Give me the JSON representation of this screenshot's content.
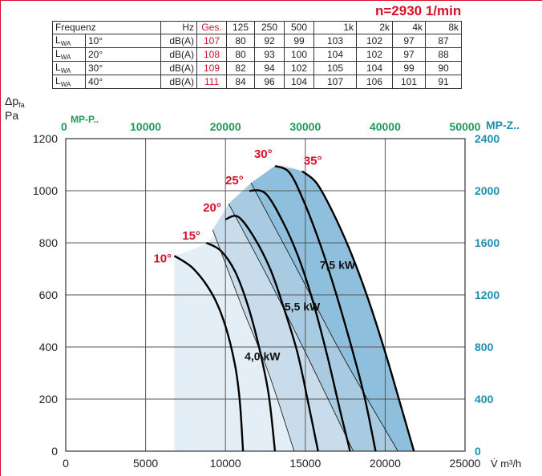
{
  "rpm_label": "n=2930 1/min",
  "noise_table": {
    "header": [
      "Frequenz",
      "",
      "Hz",
      "Ges.",
      "125",
      "250",
      "500",
      "1k",
      "2k",
      "4k",
      "8k"
    ],
    "rows": [
      {
        "label": "L",
        "sub": "WA",
        "angle": "10°",
        "unit": "dB(A)",
        "total": "107",
        "bands": [
          "80",
          "92",
          "99",
          "103",
          "102",
          "97",
          "87"
        ]
      },
      {
        "label": "L",
        "sub": "WA",
        "angle": "20°",
        "unit": "dB(A)",
        "total": "108",
        "bands": [
          "80",
          "93",
          "100",
          "104",
          "102",
          "97",
          "88"
        ]
      },
      {
        "label": "L",
        "sub": "WA",
        "angle": "30°",
        "unit": "dB(A)",
        "total": "109",
        "bands": [
          "82",
          "94",
          "102",
          "105",
          "104",
          "99",
          "90"
        ]
      },
      {
        "label": "L",
        "sub": "WA",
        "angle": "40°",
        "unit": "dB(A)",
        "total": "111",
        "bands": [
          "84",
          "96",
          "104",
          "107",
          "106",
          "101",
          "91"
        ]
      }
    ]
  },
  "chart_data": {
    "type": "line",
    "ylabel_main": "Δp",
    "ylabel_sub": "fa",
    "ylabel_unit": "Pa",
    "xlabel": "V̇ m³/h",
    "x_ticks": [
      0,
      5000,
      10000,
      15000,
      20000,
      25000
    ],
    "y_ticks": [
      0,
      200,
      400,
      600,
      800,
      1000,
      1200
    ],
    "xlim": [
      0,
      25000
    ],
    "ylim": [
      0,
      1200
    ],
    "top_axis": {
      "label": "MP-P..",
      "ticks": [
        "0",
        "10000",
        "20000",
        "30000",
        "40000",
        "50000"
      ],
      "color": "#1f9a5a"
    },
    "right_axis": {
      "label": "MP-Z..",
      "ticks": [
        "0",
        "400",
        "800",
        "1200",
        "1600",
        "2000",
        "2400"
      ],
      "color": "#1d8fb0"
    },
    "grid": true,
    "series": [
      {
        "name": "10°",
        "points": [
          [
            6800,
            750
          ],
          [
            8000,
            700
          ],
          [
            9200,
            600
          ],
          [
            10000,
            480
          ],
          [
            10600,
            330
          ],
          [
            10900,
            190
          ],
          [
            11100,
            0
          ]
        ]
      },
      {
        "name": "15°",
        "points": [
          [
            8800,
            800
          ],
          [
            9700,
            770
          ],
          [
            10600,
            690
          ],
          [
            11400,
            560
          ],
          [
            12100,
            400
          ],
          [
            12700,
            220
          ],
          [
            13100,
            0
          ]
        ]
      },
      {
        "name": "20°",
        "points": [
          [
            10000,
            890
          ],
          [
            10800,
            900
          ],
          [
            11800,
            820
          ],
          [
            12800,
            700
          ],
          [
            13600,
            560
          ],
          [
            14500,
            380
          ],
          [
            15200,
            180
          ],
          [
            15800,
            0
          ]
        ]
      },
      {
        "name": "25°",
        "points": [
          [
            11500,
            1000
          ],
          [
            12500,
            990
          ],
          [
            13600,
            880
          ],
          [
            14600,
            740
          ],
          [
            15500,
            570
          ],
          [
            16400,
            360
          ],
          [
            17200,
            150
          ],
          [
            17800,
            0
          ]
        ]
      },
      {
        "name": "30°",
        "points": [
          [
            13100,
            1095
          ],
          [
            14000,
            1070
          ],
          [
            14900,
            960
          ],
          [
            15900,
            800
          ],
          [
            16800,
            630
          ],
          [
            17800,
            420
          ],
          [
            18700,
            210
          ],
          [
            19400,
            0
          ]
        ]
      },
      {
        "name": "35°",
        "points": [
          [
            14800,
            1075
          ],
          [
            15700,
            1030
          ],
          [
            16700,
            920
          ],
          [
            17800,
            770
          ],
          [
            18900,
            590
          ],
          [
            20000,
            380
          ],
          [
            21000,
            170
          ],
          [
            21800,
            0
          ]
        ]
      }
    ],
    "motor_curves": [
      {
        "name": "4,0 kW",
        "points": [
          [
            9200,
            850
          ],
          [
            11000,
            560
          ],
          [
            12700,
            300
          ],
          [
            14300,
            0
          ]
        ]
      },
      {
        "name": "5,5 kW",
        "points": [
          [
            10200,
            950
          ],
          [
            12800,
            650
          ],
          [
            15400,
            330
          ],
          [
            18000,
            0
          ]
        ]
      },
      {
        "name": "7,5 kW",
        "points": [
          [
            11600,
            1030
          ],
          [
            14300,
            720
          ],
          [
            17300,
            370
          ],
          [
            20800,
            0
          ]
        ]
      }
    ],
    "motor_labels": [
      {
        "text": "7,5 kW",
        "x": 15900,
        "y": 700
      },
      {
        "text": "5,5 kW",
        "x": 13700,
        "y": 540
      },
      {
        "text": "4,0 kW",
        "x": 11200,
        "y": 350
      }
    ],
    "colors": {
      "curve": "#000000",
      "angle_label": "#d6102a",
      "band1": "#e3eef6",
      "band2": "#c8dcec",
      "band3": "#a8cbe2",
      "band4": "#8ebfdc"
    }
  }
}
